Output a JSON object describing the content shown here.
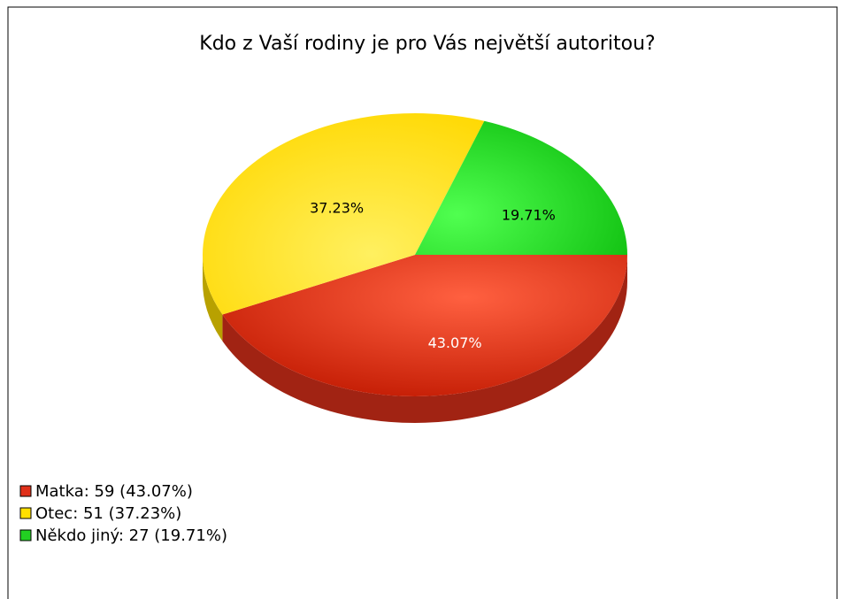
{
  "chart_data": {
    "type": "pie",
    "title": "Kdo z Vaší rodiny je pro Vás největší autoritou?",
    "categories": [
      "Matka",
      "Otec",
      "Někdo jiný"
    ],
    "values": [
      43.07,
      37.23,
      19.71
    ],
    "value_labels": [
      "43.07%",
      "37.23%",
      "19.71%"
    ],
    "legend_labels": [
      "Matka: 59 (43.07%)",
      "Otec: 51 (37.23%)",
      "Někdo jiný: 27 (19.71%)"
    ],
    "colors": [
      "#e0301a",
      "#ffe000",
      "#22d022"
    ]
  }
}
